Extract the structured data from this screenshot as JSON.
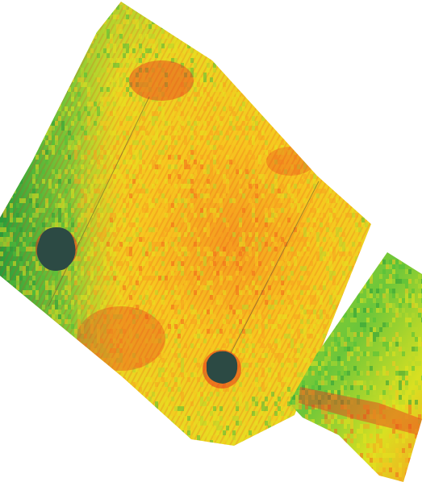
{
  "map": {
    "type": "field-yield-heatmap",
    "legend_present": false,
    "colors": {
      "background": "#ffffff",
      "very_low": "#e8301e",
      "low": "#f26a1c",
      "mid_low": "#f7a41f",
      "mid": "#f6c81f",
      "mid_high": "#e6e21f",
      "high": "#b7d82c",
      "very_high": "#4fbf3a",
      "max": "#2a9d3a",
      "obstacle": "#2c4a44",
      "boundary_line": "#6b5a30"
    },
    "fields": [
      {
        "name": "main-field",
        "dominant_level": "mid",
        "edge_level": "very_high"
      },
      {
        "name": "secondary-field",
        "dominant_level": "high",
        "edge_level": "low"
      }
    ],
    "obstacles": [
      {
        "name": "obstacle-west"
      },
      {
        "name": "obstacle-south"
      }
    ]
  }
}
